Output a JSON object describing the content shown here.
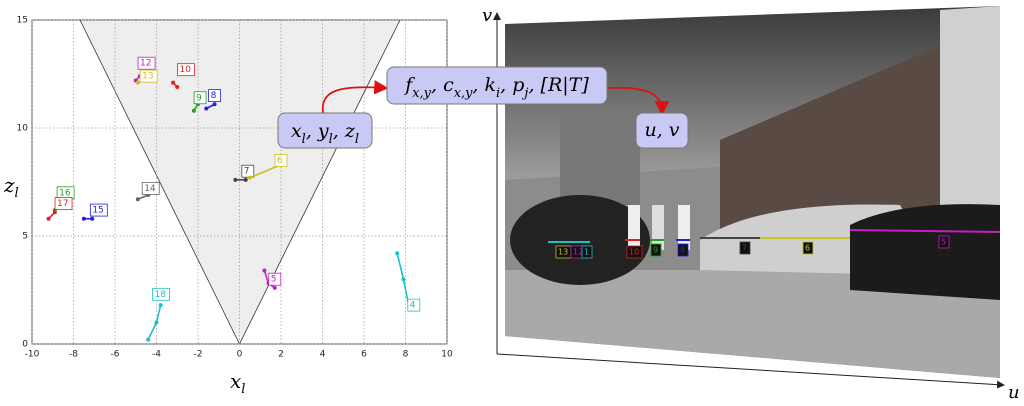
{
  "plot": {
    "xlim": [
      -10,
      10
    ],
    "ylim": [
      0,
      15
    ],
    "xticks": [
      -10,
      -8,
      -6,
      -4,
      -2,
      0,
      2,
      4,
      6,
      8,
      10
    ],
    "yticks": [
      0,
      5,
      10,
      15
    ],
    "xlabel": {
      "base": "x",
      "sub": "l"
    },
    "ylabel": {
      "base": "z",
      "sub": "l"
    },
    "tracks": [
      {
        "label": "12",
        "color": "#c020c0",
        "x": -4.6,
        "z": 13.0,
        "points": [
          [
            -5.0,
            12.2
          ],
          [
            -4.8,
            12.4
          ]
        ]
      },
      {
        "label": "13",
        "color": "#c8c020",
        "x": -4.5,
        "z": 12.4,
        "points": [
          [
            -4.9,
            12.1
          ],
          [
            -4.6,
            12.3
          ]
        ]
      },
      {
        "label": "10",
        "color": "#e02020",
        "x": -2.7,
        "z": 12.7,
        "points": [
          [
            -3.2,
            12.1
          ],
          [
            -3.0,
            11.9
          ]
        ]
      },
      {
        "label": "9",
        "color": "#20a020",
        "x": -1.9,
        "z": 11.4,
        "points": [
          [
            -2.2,
            10.8
          ],
          [
            -2.0,
            11.1
          ]
        ]
      },
      {
        "label": "8",
        "color": "#2020e0",
        "x": -1.2,
        "z": 11.5,
        "points": [
          [
            -1.6,
            10.9
          ],
          [
            -1.2,
            11.1
          ]
        ]
      },
      {
        "label": "7",
        "color": "#444444",
        "x": 0.4,
        "z": 8.0,
        "points": [
          [
            -0.2,
            7.6
          ],
          [
            0.3,
            7.6
          ]
        ]
      },
      {
        "label": "6",
        "color": "#c8c020",
        "x": 2.0,
        "z": 8.5,
        "points": [
          [
            0.5,
            7.7
          ],
          [
            2.0,
            8.3
          ]
        ]
      },
      {
        "label": "14",
        "color": "#666666",
        "x": -4.4,
        "z": 7.2,
        "points": [
          [
            -4.9,
            6.7
          ],
          [
            -4.4,
            6.9
          ]
        ]
      },
      {
        "label": "16",
        "color": "#20a020",
        "x": -8.5,
        "z": 7.0,
        "points": [
          [
            -8.9,
            6.2
          ]
        ]
      },
      {
        "label": "17",
        "color": "#e02020",
        "x": -8.6,
        "z": 6.5,
        "points": [
          [
            -9.2,
            5.8
          ],
          [
            -8.9,
            6.1
          ]
        ]
      },
      {
        "label": "15",
        "color": "#2020e0",
        "x": -6.9,
        "z": 6.2,
        "points": [
          [
            -7.5,
            5.8
          ],
          [
            -7.1,
            5.8
          ]
        ]
      },
      {
        "label": "5",
        "color": "#c020c0",
        "x": 1.7,
        "z": 3.0,
        "points": [
          [
            1.2,
            3.4
          ],
          [
            1.4,
            2.8
          ],
          [
            1.7,
            2.6
          ]
        ]
      },
      {
        "label": "18",
        "color": "#20c0c0",
        "x": -3.9,
        "z": 2.3,
        "points": [
          [
            -3.8,
            1.8
          ],
          [
            -4.0,
            1.0
          ],
          [
            -4.4,
            0.2
          ]
        ]
      },
      {
        "label": "4",
        "color": "#20c0c0",
        "x": 8.4,
        "z": 1.8,
        "points": [
          [
            7.6,
            4.2
          ],
          [
            7.9,
            3.0
          ],
          [
            8.2,
            1.6
          ]
        ]
      }
    ]
  },
  "formulas": {
    "separator": ",",
    "world": [
      {
        "base": "x",
        "sub": "l"
      },
      {
        "base": "y",
        "sub": "l"
      },
      {
        "base": "z",
        "sub": "l"
      }
    ],
    "params": [
      {
        "base": "f",
        "sub": "x,y"
      },
      {
        "base": "c",
        "sub": "x,y"
      },
      {
        "base": "k",
        "sub": "i"
      },
      {
        "base": "p",
        "sub": "j"
      },
      {
        "base": "[R|T]"
      }
    ],
    "image": [
      {
        "base": "u"
      },
      {
        "base": "v"
      }
    ]
  },
  "image": {
    "axes": {
      "u": "u",
      "v": "v"
    },
    "labels": [
      {
        "label": "13",
        "color": "#c8c020"
      },
      {
        "label": "12",
        "color": "#c020c0"
      },
      {
        "label": "1",
        "color": "#20c0c0"
      },
      {
        "label": "10",
        "color": "#e02020"
      },
      {
        "label": "9",
        "color": "#20a020"
      },
      {
        "label": "8",
        "color": "#2020e0"
      },
      {
        "label": "7",
        "color": "#444444"
      },
      {
        "label": "6",
        "color": "#c8c020"
      },
      {
        "label": "5",
        "color": "#c020c0"
      }
    ]
  }
}
